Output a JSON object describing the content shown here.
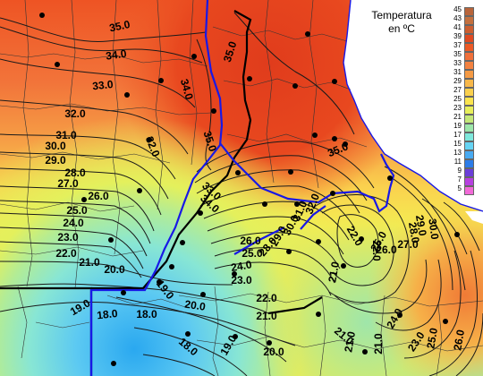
{
  "legend": {
    "title_line1": "Temperatura",
    "title_line2": "en ºC",
    "scale": [
      {
        "value": "45",
        "color": "#b8643a"
      },
      {
        "value": "43",
        "color": "#c4703e"
      },
      {
        "value": "41",
        "color": "#cc5e30"
      },
      {
        "value": "39",
        "color": "#e04a22"
      },
      {
        "value": "37",
        "color": "#ec5a26"
      },
      {
        "value": "35",
        "color": "#f0703a"
      },
      {
        "value": "33",
        "color": "#f38240"
      },
      {
        "value": "31",
        "color": "#f59a44"
      },
      {
        "value": "29",
        "color": "#f8b84a"
      },
      {
        "value": "27",
        "color": "#fad04e"
      },
      {
        "value": "25",
        "color": "#fbe44e"
      },
      {
        "value": "23",
        "color": "#e8ef5a"
      },
      {
        "value": "21",
        "color": "#c4e878"
      },
      {
        "value": "19",
        "color": "#9ce6aa"
      },
      {
        "value": "17",
        "color": "#7ee8dc"
      },
      {
        "value": "15",
        "color": "#66d4f4"
      },
      {
        "value": "13",
        "color": "#48aaf2"
      },
      {
        "value": "11",
        "color": "#2c7ce8"
      },
      {
        "value": "9",
        "color": "#6a3ed8"
      },
      {
        "value": "7",
        "color": "#b640e0"
      },
      {
        "value": "5",
        "color": "#f26ad8"
      }
    ]
  },
  "isotherms": [
    {
      "text": "35.0"
    },
    {
      "text": "34.0"
    },
    {
      "text": "35.0"
    },
    {
      "text": "33.0"
    },
    {
      "text": "34.0"
    },
    {
      "text": "32.0"
    },
    {
      "text": "35.0"
    },
    {
      "text": "31.0"
    },
    {
      "text": "30.0"
    },
    {
      "text": "32.0"
    },
    {
      "text": "29.0"
    },
    {
      "text": "28.0"
    },
    {
      "text": "35.0"
    },
    {
      "text": "27.0"
    },
    {
      "text": "26.0"
    },
    {
      "text": "25.0"
    },
    {
      "text": "24.0"
    },
    {
      "text": "23.0"
    },
    {
      "text": "22.0"
    },
    {
      "text": "21.0"
    },
    {
      "text": "20.0"
    },
    {
      "text": "19.0"
    },
    {
      "text": "18.0"
    },
    {
      "text": "20.0"
    },
    {
      "text": "19.0"
    },
    {
      "text": "18.0"
    },
    {
      "text": "18.0"
    },
    {
      "text": "19.0"
    },
    {
      "text": "20.0"
    },
    {
      "text": "21.0"
    },
    {
      "text": "22.0"
    },
    {
      "text": "23.0"
    },
    {
      "text": "24.0"
    },
    {
      "text": "25.0"
    },
    {
      "text": "26.0"
    },
    {
      "text": "21.0"
    },
    {
      "text": "21.0"
    },
    {
      "text": "22.0"
    },
    {
      "text": "23.0"
    },
    {
      "text": "25.0"
    },
    {
      "text": "26.0"
    },
    {
      "text": "27.0"
    },
    {
      "text": "28.0"
    },
    {
      "text": "29.0"
    },
    {
      "text": "30.0"
    },
    {
      "text": "33.0"
    },
    {
      "text": "34.0"
    },
    {
      "text": "28.0"
    },
    {
      "text": "29.0"
    },
    {
      "text": "30.0"
    },
    {
      "text": "31.0"
    },
    {
      "text": "32.0"
    },
    {
      "text": "21.0"
    },
    {
      "text": "22.0"
    },
    {
      "text": "24.0"
    },
    {
      "text": "21.0"
    },
    {
      "text": "25.0"
    },
    {
      "text": "26.0"
    }
  ]
}
